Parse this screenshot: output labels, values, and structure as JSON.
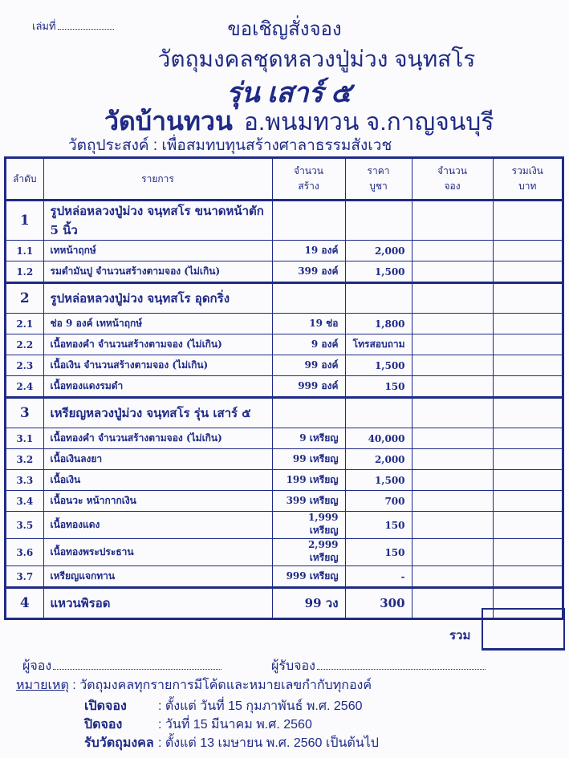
{
  "header": {
    "book_no_label": "เล่มที่",
    "invite": "ขอเชิญสั่งจอง",
    "title": "วัตถุมงคลชุดหลวงปู่ม่วง จนฺทสโร",
    "series": "รุ่น เสาร์ ๕",
    "temple": "วัดบ้านทวน",
    "location": "อ.พนมทวน จ.กาญจนบุรี",
    "purpose": "วัตถุประสงค์ : เพื่อสมทบทุนสร้างศาลาธรรมสังเวช"
  },
  "table": {
    "columns": [
      "ลำดับ",
      "รายการ",
      "จำนวน\nสร้าง",
      "ราคา\nบูชา",
      "จำนวน\nจอง",
      "รวมเงิน\nบาท"
    ],
    "rows": [
      {
        "no": "1",
        "item": "รูปหล่อหลวงปู่ม่วง จนฺทสโร ขนาดหน้าตัก 5 นิ้ว",
        "qty": "",
        "price": "",
        "group": true
      },
      {
        "no": "1.1",
        "item": "เทหน้าฤกษ์",
        "qty": "19 องค์",
        "price": "2,000"
      },
      {
        "no": "1.2",
        "item": "รมดำมันปู  จำนวนสร้างตามจอง (ไม่เกิน)",
        "qty": "399 องค์",
        "price": "1,500"
      },
      {
        "no": "2",
        "item": "รูปหล่อหลวงปู่ม่วง จนฺทสโร อุดกริ่ง",
        "qty": "",
        "price": "",
        "group": true
      },
      {
        "no": "2.1",
        "item": "ช่อ 9 องค์  เทหน้าฤกษ์",
        "qty": "19 ช่อ",
        "price": "1,800"
      },
      {
        "no": "2.2",
        "item": "เนื้อทองคำ   จำนวนสร้างตามจอง (ไม่เกิน)",
        "qty": "9 องค์",
        "price": "โทรสอบถาม"
      },
      {
        "no": "2.3",
        "item": "เนื้อเงิน      จำนวนสร้างตามจอง (ไม่เกิน)",
        "qty": "99 องค์",
        "price": "1,500"
      },
      {
        "no": "2.4",
        "item": "เนื้อทองแดงรมดำ",
        "qty": "999 องค์",
        "price": "150"
      },
      {
        "no": "3",
        "item": "เหรียญหลวงปู่ม่วง จนฺทสโร รุ่น เสาร์ ๕",
        "qty": "",
        "price": "",
        "group": true
      },
      {
        "no": "3.1",
        "item": "เนื้อทองคำ     จำนวนสร้างตามจอง (ไม่เกิน)",
        "qty": "9 เหรียญ",
        "price": "40,000"
      },
      {
        "no": "3.2",
        "item": "เนื้อเงินลงยา",
        "qty": "99 เหรียญ",
        "price": "2,000"
      },
      {
        "no": "3.3",
        "item": "เนื้อเงิน",
        "qty": "199 เหรียญ",
        "price": "1,500"
      },
      {
        "no": "3.4",
        "item": "เนื้อนวะ หน้ากากเงิน",
        "qty": "399 เหรียญ",
        "price": "700"
      },
      {
        "no": "3.5",
        "item": "เนื้อทองแดง",
        "qty": "1,999 เหรียญ",
        "price": "150"
      },
      {
        "no": "3.6",
        "item": "เนื้อทองพระประธาน",
        "qty": "2,999 เหรียญ",
        "price": "150"
      },
      {
        "no": "3.7",
        "item": "เหรียญแจกทาน",
        "qty": "999 เหรียญ",
        "price": "-"
      },
      {
        "no": "4",
        "item": "แหวนพิรอด",
        "qty": "99 วง",
        "price": "300",
        "group": true
      }
    ],
    "total_label": "รวม"
  },
  "footer": {
    "orderer_label": "ผู้จอง",
    "receiver_label": "ผู้รับจอง",
    "note_label": "หมายเหตุ",
    "note_text": " : วัตถุมงคลทุกรายการมีโค้ดและหมายเลขกำกับทุกองค์",
    "schedule": [
      {
        "label": "เปิดจอง",
        "value": ":  ตั้งแต่ วันที่ 15 กุมภาพันธ์ พ.ศ. 2560"
      },
      {
        "label": "ปิดจอง",
        "value": ":  วันที่ 15 มีนาคม พ.ศ. 2560"
      },
      {
        "label": "รับวัตถุมงคล",
        "value": ":  ตั้งแต่ 13 เมษายน พ.ศ. 2560 เป็นต้นไป"
      }
    ]
  },
  "colors": {
    "ink": "#1f2a86",
    "paper": "#fbfbfd"
  }
}
